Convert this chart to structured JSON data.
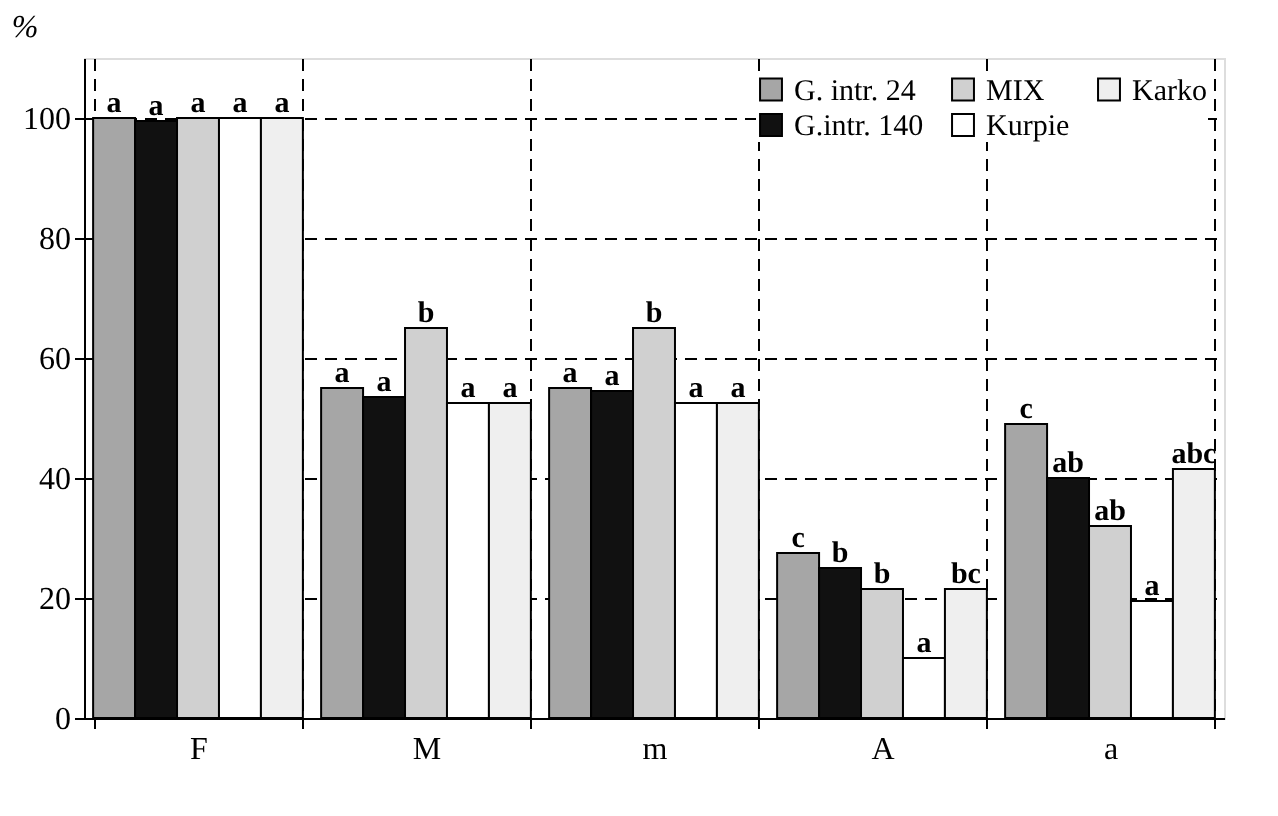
{
  "chart_data": {
    "type": "bar",
    "ylabel": "%",
    "categories": [
      "F",
      "M",
      "m",
      "A",
      "a"
    ],
    "series": [
      {
        "name": "G. intr. 24",
        "color": "#a6a6a6",
        "values": [
          100,
          55,
          55,
          27.5,
          49
        ],
        "value_labels": [
          "a",
          "a",
          "a",
          "c",
          "c"
        ]
      },
      {
        "name": "G.intr. 140",
        "color": "#111111",
        "values": [
          99.5,
          53.5,
          54.5,
          25,
          40
        ],
        "value_labels": [
          "a",
          "a",
          "a",
          "b",
          "ab"
        ]
      },
      {
        "name": "MIX",
        "color": "#d0d0d0",
        "values": [
          100,
          65,
          65,
          21.5,
          32
        ],
        "value_labels": [
          "a",
          "b",
          "b",
          "b",
          "ab"
        ]
      },
      {
        "name": "Kurpie",
        "color": "#ffffff",
        "values": [
          100,
          52.5,
          52.5,
          10,
          19.5
        ],
        "value_labels": [
          "a",
          "a",
          "a",
          "a",
          "a"
        ]
      },
      {
        "name": "Karko",
        "color": "#efefef",
        "values": [
          100,
          52.5,
          52.5,
          21.5,
          41.5
        ],
        "value_labels": [
          "a",
          "a",
          "a",
          "bc",
          "abc"
        ]
      }
    ],
    "ylim": [
      0,
      110
    ],
    "yticks": [
      0,
      20,
      40,
      60,
      80,
      100
    ],
    "grid": true,
    "legend": "top right"
  }
}
